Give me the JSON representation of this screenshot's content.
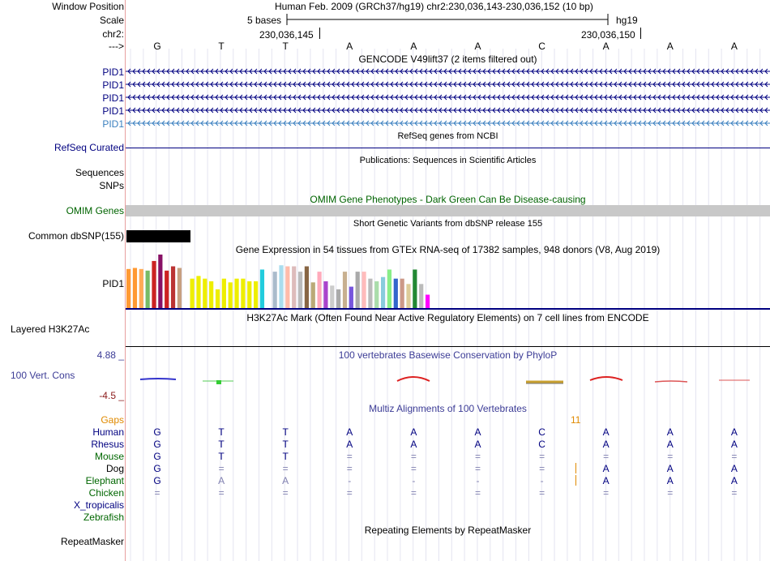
{
  "header": {
    "window_position_label": "Window Position",
    "scale_label": "Scale",
    "chrom_label": "chr2:",
    "arrow_label": "--->",
    "assembly_text": "Human Feb. 2009 (GRCh37/hg19)   chr2:230,036,143-230,036,152 (10 bp)",
    "scale_text": "5 bases",
    "scale_db": "hg19",
    "pos1": "230,036,145",
    "pos2": "230,036,150"
  },
  "sequence": [
    "G",
    "T",
    "T",
    "A",
    "A",
    "A",
    "C",
    "A",
    "A",
    "A"
  ],
  "gencode": {
    "title": "GENCODE V49lift37 (2 items filtered out)",
    "items": [
      "PID1",
      "PID1",
      "PID1",
      "PID1",
      "PID1"
    ]
  },
  "refseq": {
    "title": "RefSeq genes from NCBI",
    "label": "RefSeq Curated"
  },
  "publications": {
    "title": "Publications: Sequences in Scientific Articles",
    "label1": "Sequences",
    "label2": "SNPs"
  },
  "omim": {
    "title": "OMIM Gene Phenotypes - Dark Green Can Be Disease-causing",
    "label": "OMIM Genes"
  },
  "dbsnp": {
    "title": "Short Genetic Variants from dbSNP release 155",
    "label": "Common dbSNP(155)"
  },
  "gtex": {
    "title": "Gene Expression in 54 tissues from GTEx RNA-seq of 17382 samples, 948 donors (V8, Aug 2019)",
    "label": "PID1",
    "bars": [
      {
        "v": 0.73,
        "c": "#ff9933"
      },
      {
        "v": 0.75,
        "c": "#ff9933"
      },
      {
        "v": 0.73,
        "c": "#ffaa55"
      },
      {
        "v": 0.7,
        "c": "#77bb66"
      },
      {
        "v": 0.88,
        "c": "#cc2222"
      },
      {
        "v": 1.0,
        "c": "#881166"
      },
      {
        "v": 0.7,
        "c": "#cc2222"
      },
      {
        "v": 0.78,
        "c": "#bb3333"
      },
      {
        "v": 0.75,
        "c": "#c8a080"
      },
      {
        "v": 0.0,
        "c": "#ffffff"
      },
      {
        "v": 0.55,
        "c": "#eeee00"
      },
      {
        "v": 0.6,
        "c": "#eeee00"
      },
      {
        "v": 0.55,
        "c": "#eeee00"
      },
      {
        "v": 0.5,
        "c": "#eeee00"
      },
      {
        "v": 0.35,
        "c": "#eeee00"
      },
      {
        "v": 0.55,
        "c": "#eeee00"
      },
      {
        "v": 0.48,
        "c": "#eeee00"
      },
      {
        "v": 0.55,
        "c": "#eeee00"
      },
      {
        "v": 0.55,
        "c": "#eeee00"
      },
      {
        "v": 0.5,
        "c": "#eeee00"
      },
      {
        "v": 0.5,
        "c": "#eeee00"
      },
      {
        "v": 0.72,
        "c": "#22ccdd"
      },
      {
        "v": 0.0,
        "c": "#ffffff"
      },
      {
        "v": 0.68,
        "c": "#aabbcc"
      },
      {
        "v": 0.8,
        "c": "#aaddee"
      },
      {
        "v": 0.78,
        "c": "#ffbbaa"
      },
      {
        "v": 0.78,
        "c": "#ddbbbb"
      },
      {
        "v": 0.68,
        "c": "#bbbbbb"
      },
      {
        "v": 0.78,
        "c": "#886644"
      },
      {
        "v": 0.48,
        "c": "#bbaa77"
      },
      {
        "v": 0.68,
        "c": "#ffaabb"
      },
      {
        "v": 0.5,
        "c": "#aa44cc"
      },
      {
        "v": 0.42,
        "c": "#cccccc"
      },
      {
        "v": 0.35,
        "c": "#aaaaaa"
      },
      {
        "v": 0.68,
        "c": "#c8b090"
      },
      {
        "v": 0.4,
        "c": "#7755dd"
      },
      {
        "v": 0.68,
        "c": "#aaaaaa"
      },
      {
        "v": 0.68,
        "c": "#ffbbbb"
      },
      {
        "v": 0.55,
        "c": "#bbbbbb"
      },
      {
        "v": 0.5,
        "c": "#aaddaa"
      },
      {
        "v": 0.58,
        "c": "#88ccdd"
      },
      {
        "v": 0.72,
        "c": "#88ee88"
      },
      {
        "v": 0.55,
        "c": "#3366cc"
      },
      {
        "v": 0.55,
        "c": "#cc9988"
      },
      {
        "v": 0.45,
        "c": "#ddcc99"
      },
      {
        "v": 0.72,
        "c": "#228833"
      },
      {
        "v": 0.45,
        "c": "#bbbbbb"
      },
      {
        "v": 0.25,
        "c": "#ff00ff"
      }
    ]
  },
  "h3k27ac": {
    "title": "H3K27Ac Mark (Often Found Near Active Regulatory Elements) on 7 cell lines from ENCODE",
    "label": "Layered H3K27Ac"
  },
  "phylop": {
    "title": "100 vertebrates Basewise Conservation by PhyloP",
    "max": "4.88 _",
    "label": "100 Vert. Cons",
    "min": "-4.5 _"
  },
  "multiz": {
    "title": "Multiz Alignments of 100 Vertebrates",
    "gaps_label": "Gaps",
    "gap_number": "11",
    "species": [
      {
        "name": "Human",
        "color": "#000080",
        "bases": [
          "G",
          "T",
          "T",
          "A",
          "A",
          "A",
          "C",
          "A",
          "A",
          "A"
        ]
      },
      {
        "name": "Rhesus",
        "color": "#000080",
        "bases": [
          "G",
          "T",
          "T",
          "A",
          "A",
          "A",
          "C",
          "A",
          "A",
          "A"
        ]
      },
      {
        "name": "Mouse",
        "color": "#006600",
        "bases": [
          "G",
          "T",
          "T",
          "=",
          "=",
          "=",
          "=",
          "=",
          "=",
          "="
        ]
      },
      {
        "name": "Dog",
        "color": "#000000",
        "bases": [
          "G",
          "=",
          "=",
          "=",
          "=",
          "=",
          "=",
          "A",
          "A",
          "A"
        ]
      },
      {
        "name": "Elephant",
        "color": "#006600",
        "bases": [
          "G",
          "A",
          "A",
          "-",
          "-",
          "-",
          "-",
          "A",
          "A",
          "A"
        ]
      },
      {
        "name": "Chicken",
        "color": "#006600",
        "bases": [
          "=",
          "=",
          "=",
          "=",
          "=",
          "=",
          "=",
          "=",
          "=",
          "="
        ]
      },
      {
        "name": "X_tropicalis",
        "color": "#000080",
        "bases": [
          "",
          "",
          "",
          "",
          "",
          "",
          "",
          "",
          "",
          ""
        ]
      },
      {
        "name": "Zebrafish",
        "color": "#006600",
        "bases": [
          "",
          "",
          "",
          "",
          "",
          "",
          "",
          "",
          "",
          ""
        ]
      }
    ]
  },
  "repeatmasker": {
    "title": "Repeating Elements by RepeatMasker",
    "label": "RepeatMasker"
  },
  "colors": {
    "gencode": "#000080",
    "omim_bar": "#c8c8c8",
    "dbsnp_bar": "#000000",
    "phylop": "#3c3c96",
    "gaps": "#e08a00"
  }
}
